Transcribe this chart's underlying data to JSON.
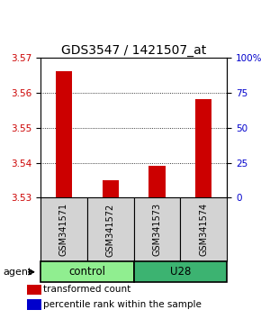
{
  "title": "GDS3547 / 1421507_at",
  "samples": [
    "GSM341571",
    "GSM341572",
    "GSM341573",
    "GSM341574"
  ],
  "red_values": [
    3.566,
    3.535,
    3.539,
    3.558
  ],
  "blue_values": [
    0.3,
    0.3,
    0.3,
    0.3
  ],
  "ylim_left": [
    3.53,
    3.57
  ],
  "ylim_right": [
    0,
    100
  ],
  "yticks_left": [
    3.53,
    3.54,
    3.55,
    3.56,
    3.57
  ],
  "yticks_right": [
    0,
    25,
    50,
    75,
    100
  ],
  "ytick_right_labels": [
    "0",
    "25",
    "50",
    "75",
    "100%"
  ],
  "groups": [
    {
      "label": "control",
      "indices": [
        0,
        1
      ],
      "color": "#90EE90"
    },
    {
      "label": "U28",
      "indices": [
        2,
        3
      ],
      "color": "#3CB371"
    }
  ],
  "bar_width": 0.35,
  "blue_bar_width": 0.25,
  "red_color": "#CC0000",
  "blue_color": "#0000CC",
  "legend_red_label": "transformed count",
  "legend_blue_label": "percentile rank within the sample",
  "agent_label": "agent",
  "title_fontsize": 10,
  "tick_fontsize": 7.5,
  "sample_fontsize": 7,
  "group_fontsize": 8.5,
  "legend_fontsize": 7.5
}
